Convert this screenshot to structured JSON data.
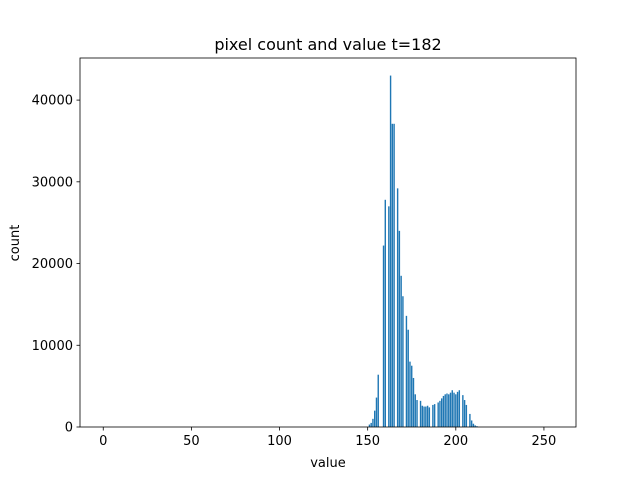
{
  "chart_data": {
    "type": "bar",
    "title": "pixel count and value t=182",
    "xlabel": "value",
    "ylabel": "count",
    "x": [
      0,
      1,
      2,
      3,
      4,
      5,
      6,
      7,
      8,
      9,
      10,
      11,
      12,
      13,
      14,
      15,
      16,
      17,
      18,
      19,
      20,
      21,
      22,
      23,
      24,
      25,
      26,
      27,
      28,
      29,
      30,
      31,
      32,
      33,
      34,
      35,
      36,
      37,
      38,
      39,
      40,
      41,
      42,
      43,
      44,
      45,
      46,
      47,
      48,
      49,
      50,
      51,
      52,
      53,
      54,
      55,
      56,
      57,
      58,
      59,
      60,
      61,
      62,
      63,
      64,
      65,
      66,
      67,
      68,
      69,
      70,
      71,
      72,
      73,
      74,
      75,
      76,
      77,
      78,
      79,
      80,
      81,
      82,
      83,
      84,
      85,
      86,
      87,
      88,
      89,
      90,
      91,
      92,
      93,
      94,
      95,
      96,
      97,
      98,
      99,
      100,
      101,
      102,
      103,
      104,
      105,
      106,
      107,
      108,
      109,
      110,
      111,
      112,
      113,
      114,
      115,
      116,
      117,
      118,
      119,
      120,
      121,
      122,
      123,
      124,
      125,
      126,
      127,
      128,
      129,
      130,
      131,
      132,
      133,
      134,
      135,
      136,
      137,
      138,
      139,
      140,
      141,
      142,
      143,
      144,
      145,
      146,
      147,
      148,
      149,
      150,
      151,
      152,
      153,
      154,
      155,
      156,
      157,
      158,
      159,
      160,
      161,
      162,
      163,
      164,
      165,
      166,
      167,
      168,
      169,
      170,
      171,
      172,
      173,
      174,
      175,
      176,
      177,
      178,
      179,
      180,
      181,
      182,
      183,
      184,
      185,
      186,
      187,
      188,
      189,
      190,
      191,
      192,
      193,
      194,
      195,
      196,
      197,
      198,
      199,
      200,
      201,
      202,
      203,
      204,
      205,
      206,
      207,
      208,
      209,
      210,
      211,
      212,
      213,
      214,
      215,
      216,
      217,
      218,
      219,
      220,
      221,
      222,
      223,
      224,
      225,
      226,
      227,
      228,
      229,
      230,
      231,
      232,
      233,
      234,
      235,
      236,
      237,
      238,
      239,
      240,
      241,
      242,
      243,
      244,
      245,
      246,
      247,
      248,
      249,
      250,
      251,
      252,
      253,
      254,
      255
    ],
    "values": [
      0,
      0,
      0,
      0,
      0,
      0,
      0,
      0,
      0,
      0,
      0,
      0,
      0,
      0,
      0,
      0,
      0,
      0,
      0,
      0,
      0,
      0,
      0,
      0,
      0,
      0,
      0,
      0,
      0,
      0,
      0,
      0,
      0,
      0,
      0,
      0,
      0,
      0,
      0,
      0,
      0,
      0,
      0,
      0,
      0,
      0,
      0,
      0,
      0,
      0,
      0,
      0,
      0,
      0,
      0,
      0,
      0,
      0,
      0,
      0,
      0,
      0,
      0,
      0,
      0,
      0,
      0,
      0,
      0,
      0,
      0,
      0,
      0,
      0,
      0,
      0,
      0,
      0,
      0,
      0,
      0,
      0,
      0,
      0,
      0,
      0,
      0,
      0,
      0,
      0,
      0,
      0,
      0,
      0,
      0,
      0,
      0,
      0,
      0,
      0,
      0,
      0,
      0,
      0,
      0,
      0,
      0,
      0,
      0,
      0,
      0,
      0,
      0,
      0,
      0,
      0,
      0,
      0,
      0,
      0,
      0,
      0,
      0,
      0,
      0,
      0,
      0,
      0,
      0,
      0,
      0,
      0,
      0,
      0,
      0,
      0,
      0,
      0,
      0,
      0,
      0,
      0,
      0,
      0,
      0,
      0,
      0,
      0,
      0,
      0,
      0,
      300,
      500,
      1000,
      2000,
      3600,
      6400,
      0,
      0,
      22200,
      27800,
      0,
      27000,
      43000,
      37100,
      37100,
      0,
      29200,
      24000,
      18500,
      16000,
      0,
      13600,
      11900,
      8000,
      7500,
      6000,
      4000,
      3300,
      0,
      3200,
      2600,
      2500,
      2500,
      2600,
      2400,
      0,
      2700,
      2800,
      0,
      3000,
      3200,
      3500,
      3800,
      4000,
      4100,
      4000,
      4200,
      4500,
      4200,
      4000,
      4300,
      4500,
      0,
      3900,
      3300,
      2700,
      0,
      1600,
      800,
      400,
      200,
      100,
      0,
      0,
      0,
      0,
      0,
      0,
      0,
      0,
      0,
      0,
      0,
      0,
      0,
      0,
      0,
      0,
      0,
      0,
      0,
      0,
      0,
      0,
      0,
      0,
      0,
      0,
      0,
      0,
      0,
      0,
      0,
      0,
      0,
      0,
      0,
      0,
      0,
      0,
      0,
      0,
      0,
      0,
      0
    ],
    "color": "#1f77b4",
    "xlim": [
      -13.19,
      268.19
    ],
    "xticks": [
      0,
      50,
      100,
      150,
      200,
      250
    ],
    "ylim": [
      0,
      45150
    ],
    "yticks": [
      0,
      10000,
      20000,
      30000,
      40000
    ]
  }
}
